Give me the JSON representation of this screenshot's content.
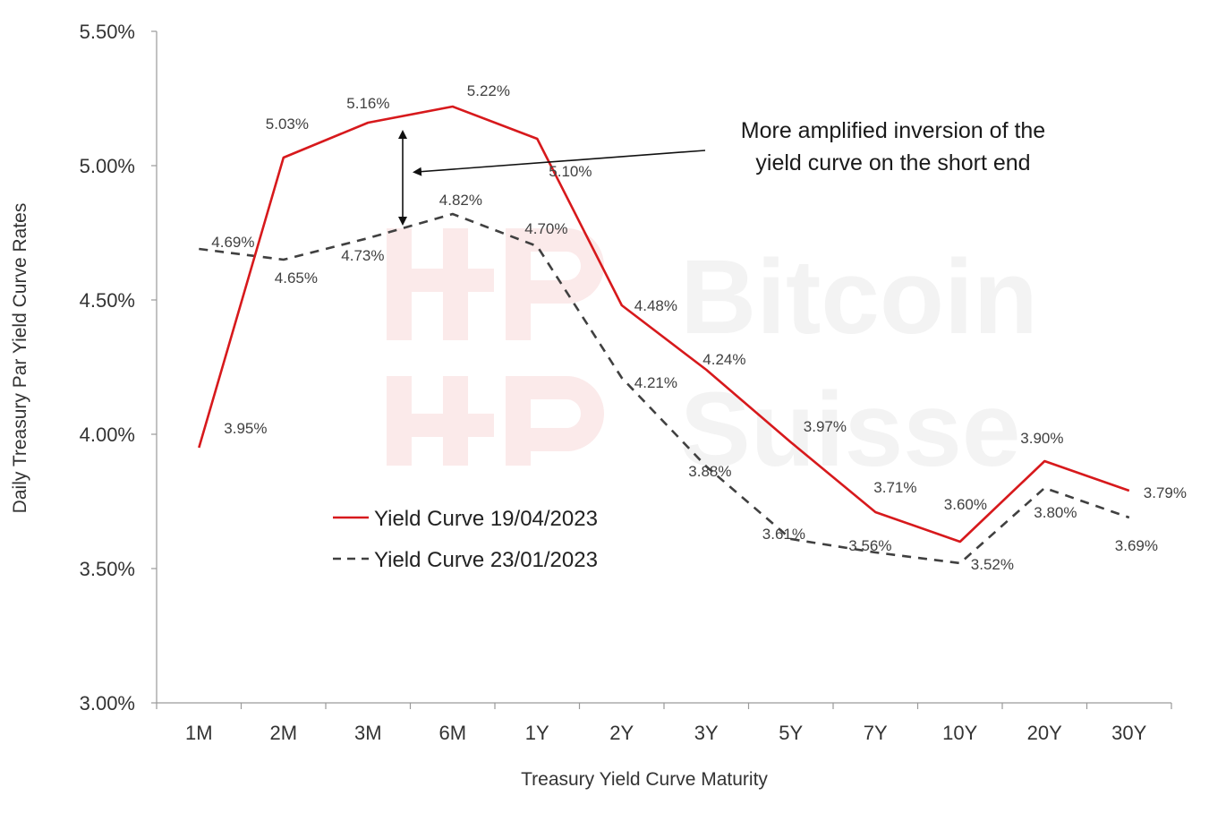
{
  "chart_data": {
    "type": "line",
    "title": "",
    "xlabel": "Treasury Yield Curve Maturity",
    "ylabel": "Daily Treasury Par Yield Curve Rates",
    "categories": [
      "1M",
      "2M",
      "3M",
      "6M",
      "1Y",
      "2Y",
      "3Y",
      "5Y",
      "7Y",
      "10Y",
      "20Y",
      "30Y"
    ],
    "ylim": [
      3.0,
      5.5
    ],
    "yticks": [
      3.0,
      3.5,
      4.0,
      4.5,
      5.0,
      5.5
    ],
    "ytick_labels": [
      "3.00%",
      "3.50%",
      "4.00%",
      "4.50%",
      "5.00%",
      "5.50%"
    ],
    "grid": false,
    "legend_position": "lower-left",
    "series": [
      {
        "name": "Yield Curve 19/04/2023",
        "style": "solid",
        "color": "#d7191c",
        "values": [
          3.95,
          5.03,
          5.16,
          5.22,
          5.1,
          4.48,
          4.24,
          3.97,
          3.71,
          3.6,
          3.9,
          3.79
        ],
        "labels": [
          "3.95%",
          "5.03%",
          "5.16%",
          "5.22%",
          "5.10%",
          "4.48%",
          "4.24%",
          "3.97%",
          "3.71%",
          "3.60%",
          "3.90%",
          "3.79%"
        ]
      },
      {
        "name": "Yield Curve 23/01/2023",
        "style": "dashed",
        "color": "#404040",
        "values": [
          4.69,
          4.65,
          4.73,
          4.82,
          4.7,
          4.21,
          3.88,
          3.61,
          3.56,
          3.52,
          3.8,
          3.69
        ],
        "labels": [
          "4.69%",
          "4.65%",
          "4.73%",
          "4.82%",
          "4.70%",
          "4.21%",
          "3.88%",
          "3.61%",
          "3.56%",
          "3.52%",
          "3.80%",
          "3.69%"
        ]
      }
    ],
    "annotations": [
      {
        "text_line1": "More amplified inversion of the",
        "text_line2": "yield curve on the short end"
      }
    ],
    "watermark": {
      "line1": "Bitcoin",
      "line2": "Suisse"
    }
  }
}
